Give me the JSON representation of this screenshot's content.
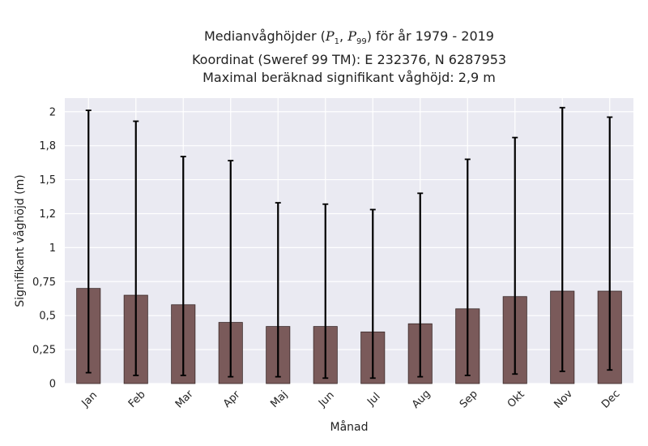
{
  "chart_data": {
    "type": "bar",
    "title": {
      "line1_prefix": "Medianvåghöjder (",
      "p1_symbol": "P",
      "p1_sub": "1",
      "separator": ", ",
      "p99_symbol": "P",
      "p99_sub": "99",
      "line1_suffix": ") för år 1979 - 2019",
      "line2": "Koordinat (Sweref 99 TM): E 232376, N 6287953",
      "line3": "Maximal beräknad signifikant våghöjd: 2,9 m"
    },
    "xlabel": "Månad",
    "ylabel": "Signifikant våghöjd (m)",
    "ylim": [
      0,
      2.1
    ],
    "yticks": [
      0,
      0.25,
      0.5,
      0.75,
      1,
      1.25,
      1.5,
      1.75,
      2
    ],
    "ytick_labels": [
      "0",
      "0,25",
      "0,5",
      "0,75",
      "1",
      "1,2",
      "1,5",
      "1,8",
      "2"
    ],
    "categories": [
      "Jan",
      "Feb",
      "Mar",
      "Apr",
      "Maj",
      "Jun",
      "Jul",
      "Aug",
      "Sep",
      "Okt",
      "Nov",
      "Dec"
    ],
    "values": [
      0.7,
      0.65,
      0.58,
      0.45,
      0.42,
      0.42,
      0.38,
      0.44,
      0.55,
      0.64,
      0.68,
      0.68
    ],
    "p1": [
      0.08,
      0.06,
      0.06,
      0.05,
      0.05,
      0.04,
      0.04,
      0.05,
      0.06,
      0.07,
      0.09,
      0.1
    ],
    "p99": [
      2.01,
      1.93,
      1.67,
      1.64,
      1.33,
      1.32,
      1.28,
      1.4,
      1.65,
      1.81,
      2.03,
      1.96
    ],
    "bar_color": "#7a5a5a",
    "errorbar_color": "#000000",
    "background_color": "#eaeaf2",
    "grid": true
  }
}
